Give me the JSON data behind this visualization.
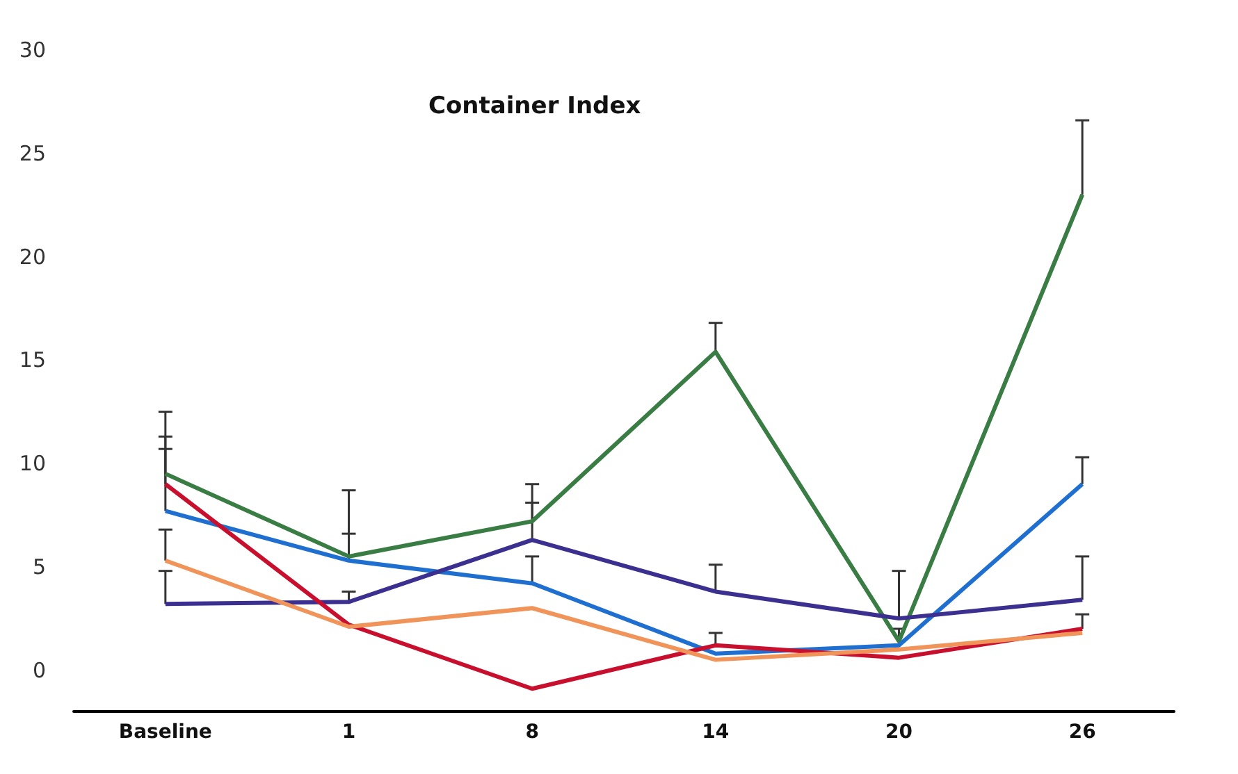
{
  "chart_data": {
    "type": "line",
    "title": "Container Index",
    "categories": [
      "Baseline",
      "1",
      "8",
      "14",
      "20",
      "26"
    ],
    "ylim": [
      -2,
      30
    ],
    "yticks": [
      0,
      5,
      10,
      15,
      20,
      25,
      30
    ],
    "grid": false,
    "marker": "none",
    "line_style": "solid",
    "series": [
      {
        "color": "#3a7d44",
        "values": [
          9.5,
          5.5,
          7.2,
          15.4,
          1.4,
          23.0
        ],
        "errors": [
          [
            9.5,
            12.5
          ],
          [
            5.5,
            8.7
          ],
          [
            7.2,
            9.0
          ],
          [
            15.4,
            16.8
          ],
          [
            1.4,
            2.0
          ],
          [
            23.0,
            26.6
          ]
        ]
      },
      {
        "color": "#1f6fd0",
        "values": [
          7.7,
          5.3,
          4.2,
          0.8,
          1.2,
          9.0
        ],
        "errors": [
          [
            7.7,
            10.7
          ],
          [
            5.3,
            6.6
          ],
          [
            4.2,
            5.5
          ],
          null,
          null,
          [
            9.0,
            10.3
          ]
        ]
      },
      {
        "color": "#3b2f8f",
        "values": [
          3.2,
          3.3,
          6.3,
          3.8,
          2.5,
          3.4
        ],
        "errors": [
          [
            3.2,
            4.8
          ],
          [
            3.3,
            3.8
          ],
          [
            6.3,
            8.1
          ],
          [
            3.8,
            5.1
          ],
          [
            2.5,
            4.8
          ],
          [
            3.4,
            5.5
          ]
        ]
      },
      {
        "color": "#c8102e",
        "values": [
          9.0,
          2.2,
          -0.9,
          1.2,
          0.6,
          2.0
        ],
        "errors": [
          [
            9.0,
            11.3
          ],
          null,
          null,
          [
            1.2,
            1.8
          ],
          null,
          [
            2.0,
            2.7
          ]
        ]
      },
      {
        "color": "#f0945a",
        "values": [
          5.3,
          2.1,
          3.0,
          0.5,
          1.0,
          1.8
        ],
        "errors": [
          [
            5.3,
            6.8
          ],
          null,
          null,
          null,
          null,
          null
        ]
      }
    ]
  }
}
